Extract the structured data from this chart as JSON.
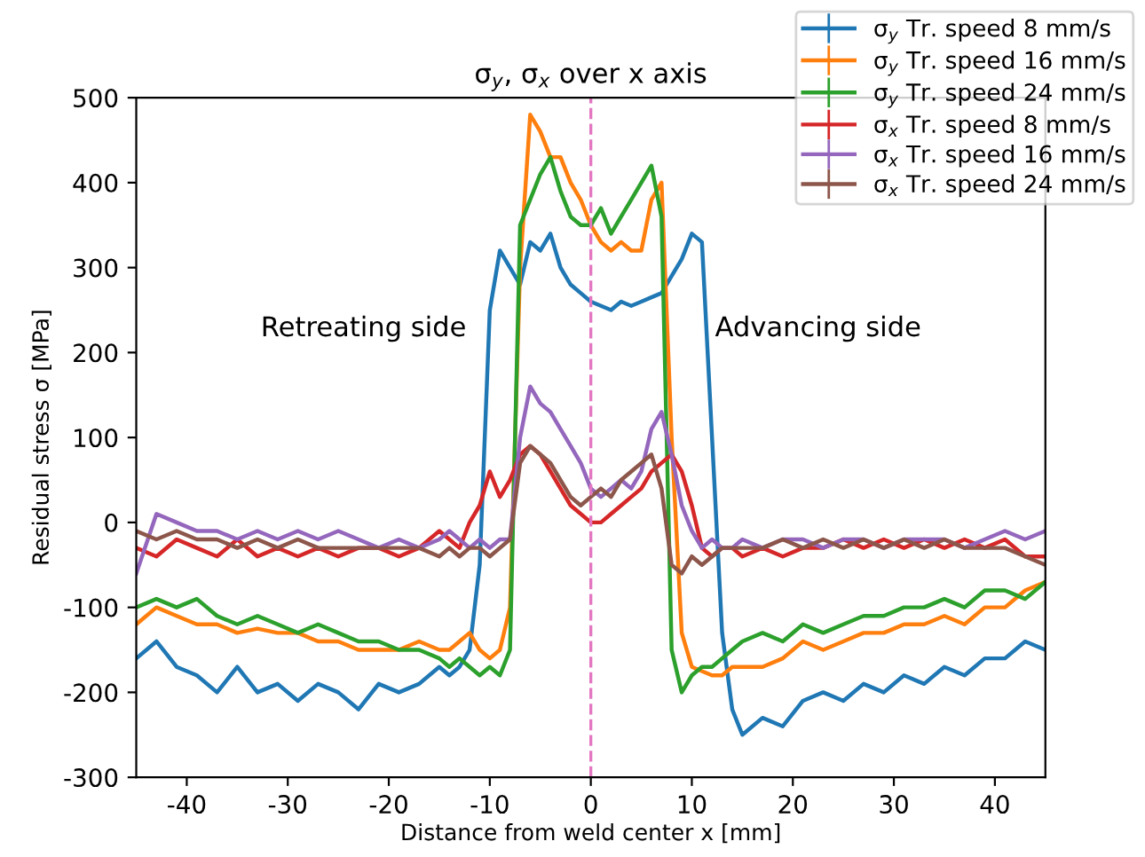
{
  "chart_data": {
    "type": "line",
    "title": "σ$_{y}$, σ$_{x}$ over x axis",
    "xlabel": "Distance from weld center x [mm]",
    "ylabel": "Residual stress σ [MPa]",
    "x": [
      -45,
      -43,
      -41,
      -39,
      -37,
      -35,
      -33,
      -31,
      -29,
      -27,
      -25,
      -23,
      -21,
      -19,
      -17,
      -15,
      -14,
      -13,
      -12,
      -11,
      -10,
      -9,
      -8,
      -7,
      -6,
      -5,
      -4,
      -3,
      -2,
      -1,
      0,
      1,
      2,
      3,
      4,
      5,
      6,
      7,
      8,
      9,
      10,
      11,
      12,
      13,
      14,
      15,
      17,
      19,
      21,
      23,
      25,
      27,
      29,
      31,
      33,
      35,
      37,
      39,
      41,
      43,
      45
    ],
    "series": [
      {
        "name": "σ$_{y}$ Tr. speed 8 mm/s",
        "color": "#1f77b4",
        "values": [
          -160,
          -140,
          -170,
          -180,
          -200,
          -170,
          -200,
          -190,
          -210,
          -190,
          -200,
          -220,
          -190,
          -200,
          -190,
          -170,
          -180,
          -170,
          -150,
          -50,
          250,
          320,
          300,
          280,
          330,
          320,
          340,
          300,
          280,
          270,
          260,
          255,
          250,
          260,
          255,
          260,
          265,
          270,
          290,
          310,
          340,
          330,
          100,
          -130,
          -220,
          -250,
          -230,
          -240,
          -210,
          -200,
          -210,
          -190,
          -200,
          -180,
          -190,
          -170,
          -180,
          -160,
          -160,
          -140,
          -150
        ]
      },
      {
        "name": "σ$_{y}$ Tr. speed 16 mm/s",
        "color": "#ff7f0e",
        "values": [
          -120,
          -100,
          -110,
          -120,
          -120,
          -130,
          -125,
          -130,
          -130,
          -140,
          -140,
          -150,
          -150,
          -150,
          -140,
          -150,
          -150,
          -140,
          -130,
          -150,
          -160,
          -150,
          -100,
          300,
          480,
          460,
          430,
          430,
          400,
          380,
          350,
          330,
          320,
          330,
          320,
          320,
          380,
          400,
          100,
          -130,
          -170,
          -175,
          -180,
          -180,
          -170,
          -170,
          -170,
          -160,
          -140,
          -150,
          -140,
          -130,
          -130,
          -120,
          -120,
          -110,
          -120,
          -100,
          -100,
          -80,
          -70
        ]
      },
      {
        "name": "σ$_{y}$ Tr. speed 24 mm/s",
        "color": "#2ca02c",
        "values": [
          -100,
          -90,
          -100,
          -90,
          -110,
          -120,
          -110,
          -120,
          -130,
          -120,
          -130,
          -140,
          -140,
          -150,
          -150,
          -160,
          -170,
          -160,
          -170,
          -180,
          -170,
          -180,
          -150,
          350,
          380,
          410,
          430,
          390,
          360,
          350,
          350,
          370,
          340,
          360,
          380,
          400,
          420,
          360,
          -150,
          -200,
          -180,
          -170,
          -170,
          -160,
          -150,
          -140,
          -130,
          -140,
          -120,
          -130,
          -120,
          -110,
          -110,
          -100,
          -100,
          -90,
          -100,
          -80,
          -80,
          -90,
          -70
        ]
      },
      {
        "name": "σ$_{x}$ Tr. speed 8 mm/s",
        "color": "#d62728",
        "values": [
          -30,
          -40,
          -20,
          -30,
          -40,
          -20,
          -40,
          -30,
          -40,
          -30,
          -40,
          -30,
          -30,
          -40,
          -30,
          -10,
          -20,
          -30,
          0,
          20,
          60,
          30,
          50,
          80,
          90,
          80,
          60,
          40,
          20,
          10,
          0,
          0,
          10,
          20,
          30,
          40,
          60,
          70,
          80,
          60,
          20,
          -30,
          -40,
          -30,
          -30,
          -40,
          -30,
          -40,
          -30,
          -30,
          -20,
          -30,
          -20,
          -30,
          -20,
          -30,
          -20,
          -30,
          -20,
          -40,
          -40
        ]
      },
      {
        "name": "σ$_{x}$ Tr. speed 16 mm/s",
        "color": "#9467bd",
        "values": [
          -60,
          10,
          0,
          -10,
          -10,
          -20,
          -10,
          -20,
          -10,
          -20,
          -10,
          -20,
          -30,
          -20,
          -30,
          -20,
          -10,
          -20,
          -30,
          -20,
          -30,
          -20,
          -20,
          100,
          160,
          140,
          130,
          110,
          90,
          70,
          40,
          30,
          40,
          50,
          40,
          60,
          110,
          130,
          80,
          20,
          -10,
          -30,
          -20,
          -30,
          -30,
          -20,
          -30,
          -20,
          -20,
          -30,
          -20,
          -20,
          -30,
          -20,
          -20,
          -20,
          -30,
          -20,
          -10,
          -20,
          -10
        ]
      },
      {
        "name": "σ$_{x}$ Tr. speed 24 mm/s",
        "color": "#8c564b",
        "values": [
          -10,
          -20,
          -10,
          -20,
          -20,
          -30,
          -20,
          -30,
          -20,
          -30,
          -30,
          -30,
          -30,
          -30,
          -30,
          -40,
          -30,
          -40,
          -30,
          -30,
          -40,
          -30,
          -20,
          70,
          90,
          80,
          70,
          50,
          30,
          20,
          30,
          40,
          30,
          50,
          60,
          70,
          80,
          40,
          -50,
          -60,
          -40,
          -50,
          -40,
          -30,
          -30,
          -30,
          -30,
          -20,
          -30,
          -20,
          -30,
          -20,
          -30,
          -20,
          -30,
          -20,
          -30,
          -30,
          -30,
          -40,
          -50
        ]
      }
    ],
    "xlim": [
      -45,
      45
    ],
    "xticks": [
      -40,
      -30,
      -20,
      -10,
      0,
      10,
      20,
      30,
      40
    ],
    "ylim": [
      -300,
      500
    ],
    "yticks": [
      -300,
      -200,
      -100,
      0,
      100,
      200,
      300,
      400,
      500
    ],
    "ref_lines": [
      {
        "axis": "x",
        "value": 0,
        "color": "#e377c2",
        "line_style": "dashed"
      }
    ],
    "annotations": [
      "Retreating side",
      "Advancing side"
    ],
    "legend": "top right",
    "line_style": "solid"
  }
}
